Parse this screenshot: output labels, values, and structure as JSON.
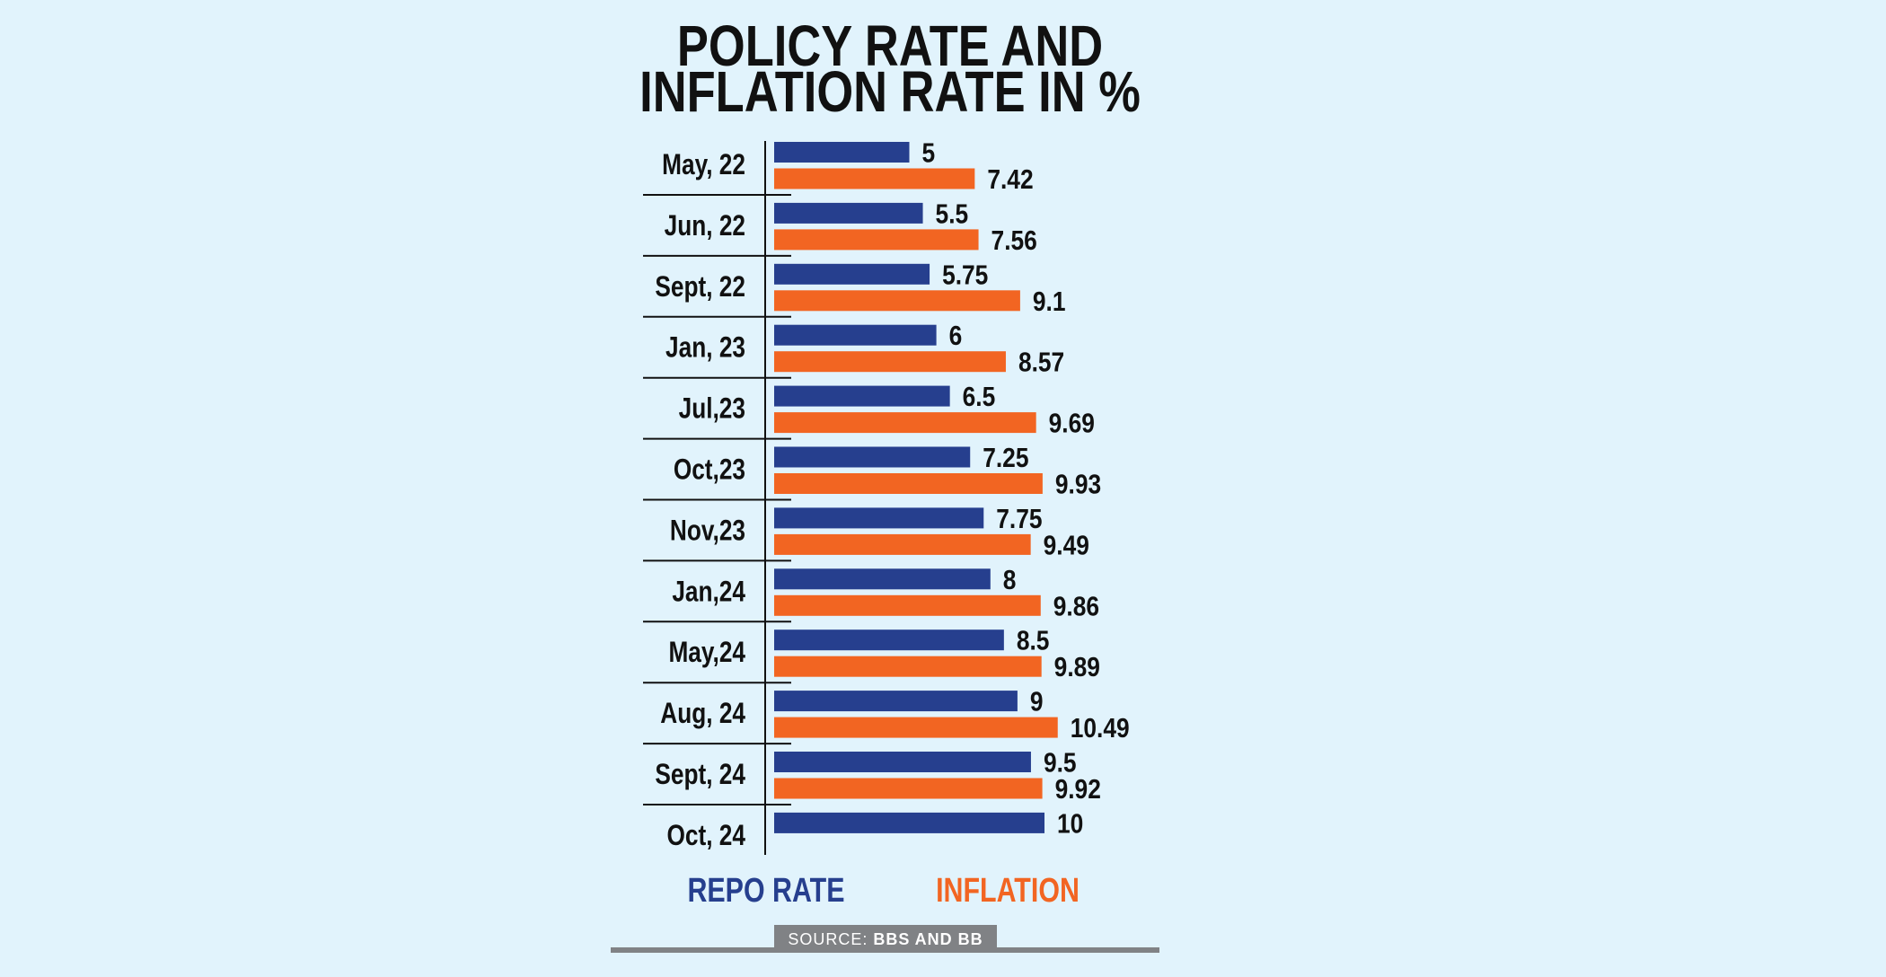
{
  "colors": {
    "background": "#e1f3fc",
    "repo": "#263f8e",
    "inflation": "#f26522",
    "source_bar": "#808285",
    "text": "#111111"
  },
  "chart_data": {
    "type": "bar",
    "orientation": "horizontal",
    "title_lines": [
      "POLICY RATE AND",
      "INFLATION RATE IN %"
    ],
    "categories": [
      "May, 22",
      "Jun, 22",
      "Sept, 22",
      "Jan, 23",
      "Jul,23",
      "Oct,23",
      "Nov,23",
      "Jan,24",
      "May,24",
      "Aug, 24",
      "Sept, 24",
      "Oct, 24"
    ],
    "series": [
      {
        "name": "REPO RATE",
        "color": "#263f8e",
        "values": [
          5,
          5.5,
          5.75,
          6,
          6.5,
          7.25,
          7.75,
          8,
          8.5,
          9,
          9.5,
          10
        ],
        "labels": [
          "5",
          "5.5",
          "5.75",
          "6",
          "6.5",
          "7.25",
          "7.75",
          "8",
          "8.5",
          "9",
          "9.5",
          "10"
        ]
      },
      {
        "name": "INFLATION",
        "color": "#f26522",
        "values": [
          7.42,
          7.56,
          9.1,
          8.57,
          9.69,
          9.93,
          9.49,
          9.86,
          9.89,
          10.49,
          9.92,
          null
        ],
        "labels": [
          "7.42",
          "7.56",
          "9.1",
          "8.57",
          "9.69",
          "9.93",
          "9.49",
          "9.86",
          "9.89",
          "10.49",
          "9.92",
          null
        ]
      }
    ],
    "xlim": [
      0,
      11
    ],
    "grid": false,
    "legend_placement": "bottom",
    "source": {
      "prefix": "SOURCE:",
      "text": "BBS AND BB"
    }
  }
}
